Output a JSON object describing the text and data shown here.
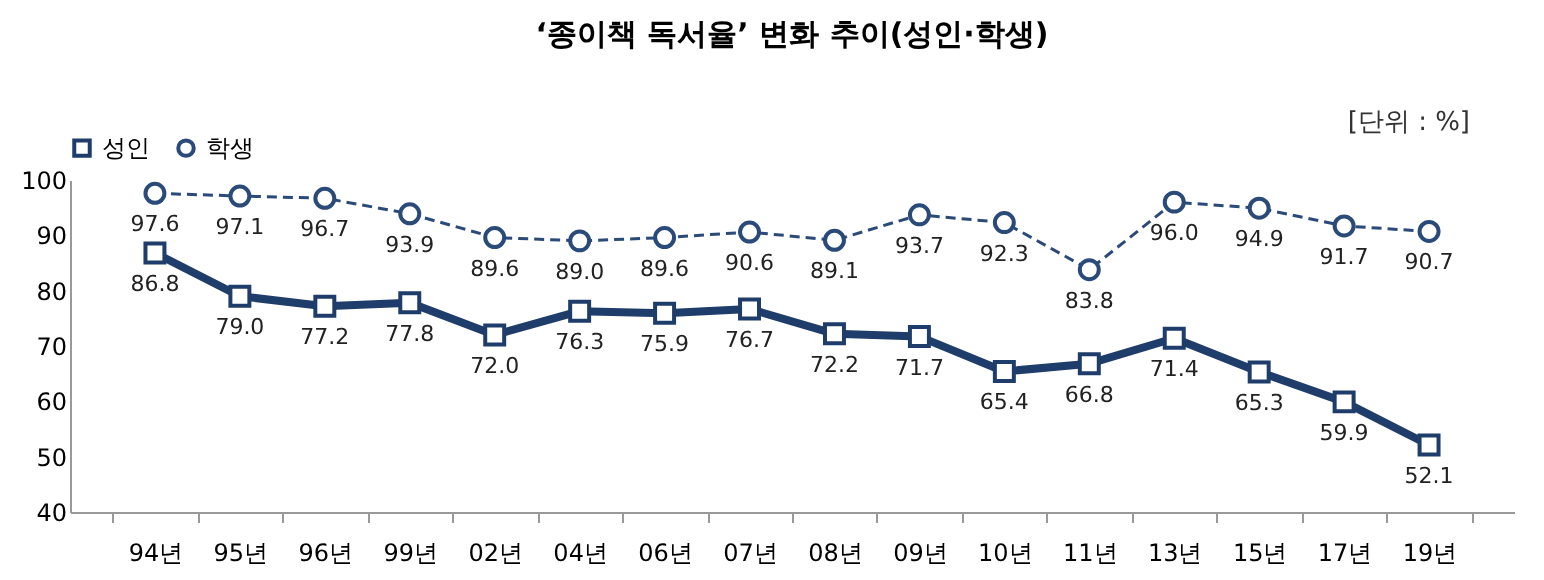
{
  "chart_data": {
    "type": "line",
    "title": "‘종이책 독서율’ 변화 추이(성인·학생)",
    "annotations": [
      "[단위 : %]"
    ],
    "categories": [
      "94년",
      "95년",
      "96년",
      "99년",
      "02년",
      "04년",
      "06년",
      "07년",
      "08년",
      "09년",
      "10년",
      "11년",
      "13년",
      "15년",
      "17년",
      "19년"
    ],
    "series": [
      {
        "name": "성인",
        "color": "#1f3d6b",
        "marker": "square",
        "line_style": "solid",
        "value_labels": [
          "86.8",
          "79.0",
          "77.2",
          "77.8",
          "72.0",
          "76.3",
          "75.9",
          "76.7",
          "72.2",
          "71.7",
          "65.4",
          "66.8",
          "71.4",
          "65.3",
          "59.9",
          "52.1"
        ],
        "values": [
          86.8,
          79.0,
          77.2,
          77.8,
          72.0,
          76.3,
          75.9,
          76.7,
          72.2,
          71.7,
          65.4,
          66.8,
          71.4,
          65.3,
          59.9,
          52.1
        ]
      },
      {
        "name": "학생",
        "color": "#2a4a7a",
        "marker": "circle",
        "line_style": "dashed",
        "value_labels": [
          "97.6",
          "97.1",
          "96.7",
          "93.9",
          "89.6",
          "89.0",
          "89.6",
          "90.6",
          "89.1",
          "93.7",
          "92.3",
          "83.8",
          "96.0",
          "94.9",
          "91.7",
          "90.7"
        ],
        "values": [
          97.6,
          97.1,
          96.7,
          93.9,
          89.6,
          89.0,
          89.6,
          90.6,
          89.1,
          93.7,
          92.3,
          83.8,
          96.0,
          94.9,
          91.7,
          90.7
        ]
      }
    ],
    "ylim": [
      40,
      100
    ],
    "yticks": [
      40,
      50,
      60,
      70,
      80,
      90,
      100
    ],
    "grid": false,
    "legend": "top"
  }
}
